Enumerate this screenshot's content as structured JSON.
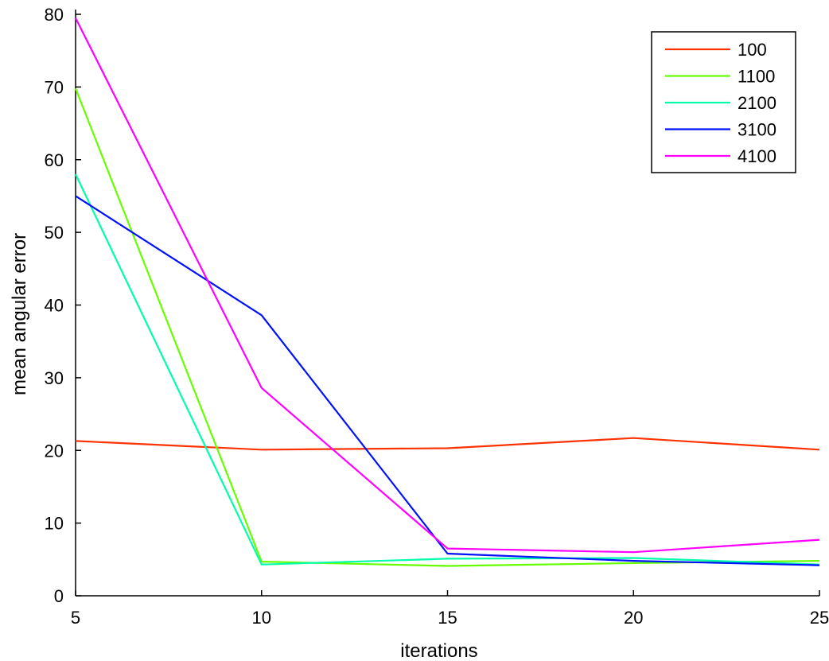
{
  "chart_data": {
    "type": "line",
    "title": "",
    "xlabel": "iterations",
    "ylabel": "mean angular error",
    "x": [
      5,
      10,
      15,
      20,
      25
    ],
    "xlim": [
      5,
      25
    ],
    "ylim": [
      0,
      80
    ],
    "xticks": [
      5,
      10,
      15,
      20,
      25
    ],
    "yticks": [
      0,
      10,
      20,
      30,
      40,
      50,
      60,
      70,
      80
    ],
    "grid": false,
    "legend_position": "top-right",
    "series": [
      {
        "name": "100",
        "color": "#ff3300",
        "values": [
          21.3,
          20.1,
          20.3,
          21.7,
          20.1
        ]
      },
      {
        "name": "1100",
        "color": "#66ff00",
        "values": [
          69.8,
          4.7,
          4.1,
          4.5,
          4.8
        ]
      },
      {
        "name": "2100",
        "color": "#00ffaa",
        "values": [
          58.0,
          4.3,
          5.1,
          5.2,
          4.3
        ]
      },
      {
        "name": "3100",
        "color": "#0011ff",
        "values": [
          55.0,
          38.6,
          5.8,
          4.8,
          4.2
        ]
      },
      {
        "name": "4100",
        "color": "#ff00ff",
        "values": [
          79.5,
          28.6,
          6.5,
          6.0,
          7.7
        ]
      }
    ]
  }
}
